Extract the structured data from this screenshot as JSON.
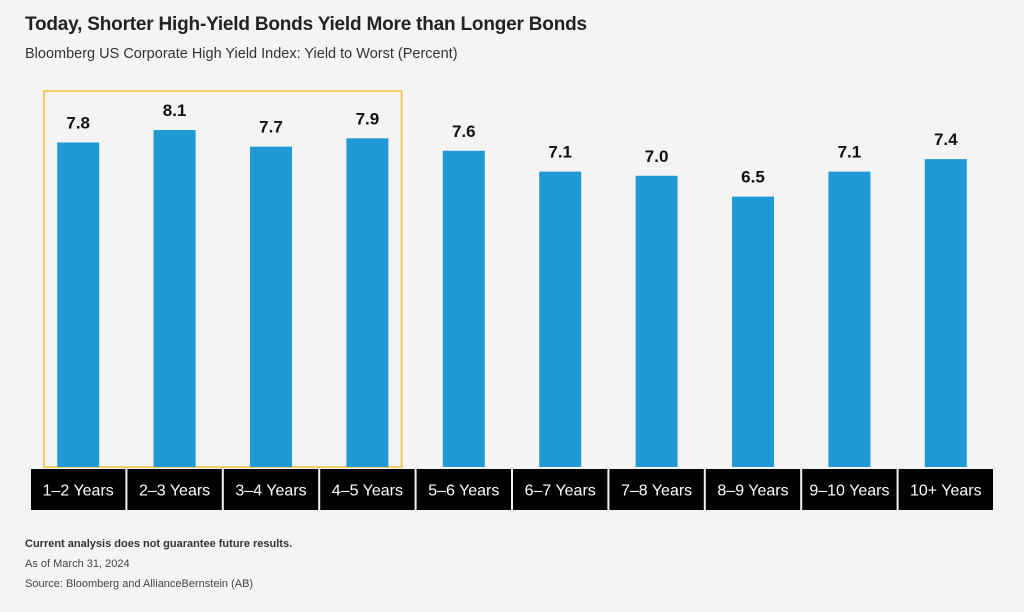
{
  "title": "Today, Shorter High-Yield Bonds Yield More than Longer Bonds",
  "subtitle": "Bloomberg US Corporate High Yield Index: Yield to Worst (Percent)",
  "footnotes": {
    "disclaimer": "Current analysis does not guarantee future results.",
    "as_of": "As of March 31, 2024",
    "source": "Source: Bloomberg and AllianceBernstein (AB)"
  },
  "colors": {
    "bar": "#2199d6",
    "category_bg": "#000000",
    "category_text": "#ffffff",
    "highlight_border": "#f5c243",
    "background": "#f4f4f4"
  },
  "chart_data": {
    "type": "bar",
    "title": "Today, Shorter High-Yield Bonds Yield More than Longer Bonds",
    "subtitle": "Bloomberg US Corporate High Yield Index: Yield to Worst (Percent)",
    "categories": [
      "1–2 Years",
      "2–3 Years",
      "3–4 Years",
      "4–5 Years",
      "5–6 Years",
      "6–7 Years",
      "7–8 Years",
      "8–9 Years",
      "9–10 Years",
      "10+ Years"
    ],
    "values": [
      7.8,
      8.1,
      7.7,
      7.9,
      7.6,
      7.1,
      7.0,
      6.5,
      7.1,
      7.4
    ],
    "value_labels": [
      "7.8",
      "8.1",
      "7.7",
      "7.9",
      "7.6",
      "7.1",
      "7.0",
      "6.5",
      "7.1",
      "7.4"
    ],
    "ylim": [
      0,
      8.1
    ],
    "grid": false,
    "legend": "none",
    "highlighted_categories": [
      "1–2 Years",
      "2–3 Years",
      "3–4 Years",
      "4–5 Years"
    ]
  }
}
